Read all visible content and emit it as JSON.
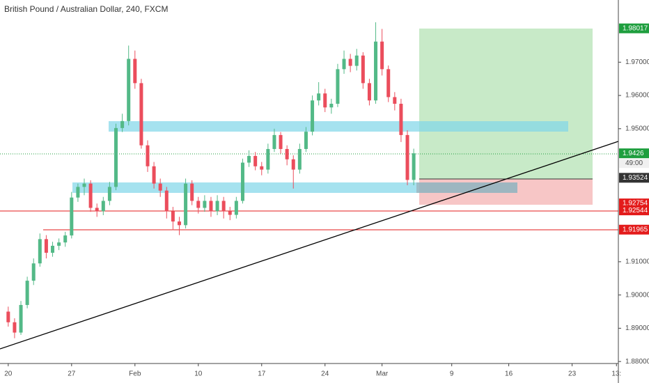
{
  "chart_data": {
    "type": "candlestick",
    "title": "British Pound / Australian Dollar, 240, FXCM",
    "up_color": "#53b987",
    "down_color": "#eb4d5c",
    "open": [
      1.895,
      1.8918,
      1.8887,
      1.897,
      1.9043,
      1.9095,
      1.9168,
      1.9127,
      1.9148,
      1.9158,
      1.9179,
      1.9293,
      1.9325,
      1.9335,
      1.9262,
      1.9252,
      1.9283,
      1.9325,
      1.9502,
      1.9523,
      1.971,
      1.9637,
      1.945,
      1.9387,
      1.9335,
      1.9314,
      1.9252,
      1.9221,
      1.921,
      1.9335,
      1.9283,
      1.9262,
      1.9283,
      1.9252,
      1.9283,
      1.9252,
      1.9241,
      1.9283,
      1.9398,
      1.9418,
      1.9387,
      1.9377,
      1.9439,
      1.9481,
      1.9439,
      1.9408,
      1.9377,
      1.9439,
      1.9491,
      1.9585,
      1.9606,
      1.9564,
      1.9575,
      1.9679,
      1.971,
      1.9689,
      1.972,
      1.9637,
      1.9585,
      1.9762,
      1.9679,
      1.9595,
      1.9575,
      1.9481,
      1.9346
    ],
    "high": [
      1.8965,
      1.893,
      1.8982,
      1.9055,
      1.911,
      1.9185,
      1.918,
      1.916,
      1.917,
      1.919,
      1.931,
      1.9335,
      1.935,
      1.9345,
      1.9275,
      1.9295,
      1.934,
      1.9515,
      1.9545,
      1.975,
      1.9735,
      1.965,
      1.9465,
      1.94,
      1.935,
      1.9325,
      1.9265,
      1.9235,
      1.935,
      1.9345,
      1.9295,
      1.93,
      1.9295,
      1.93,
      1.9295,
      1.9265,
      1.9295,
      1.941,
      1.9435,
      1.943,
      1.94,
      1.9455,
      1.95,
      1.949,
      1.945,
      1.942,
      1.9455,
      1.9505,
      1.96,
      1.964,
      1.962,
      1.959,
      1.9695,
      1.9735,
      1.9725,
      1.974,
      1.973,
      1.965,
      1.982,
      1.98,
      1.969,
      1.961,
      1.959,
      1.9495,
      1.944
    ],
    "low": [
      1.8905,
      1.887,
      1.888,
      1.896,
      1.903,
      1.9085,
      1.911,
      1.9115,
      1.9135,
      1.9145,
      1.917,
      1.928,
      1.93,
      1.925,
      1.9235,
      1.924,
      1.927,
      1.9315,
      1.949,
      1.951,
      1.962,
      1.944,
      1.937,
      1.932,
      1.9295,
      1.923,
      1.9195,
      1.918,
      1.92,
      1.927,
      1.9245,
      1.925,
      1.9235,
      1.924,
      1.923,
      1.9225,
      1.923,
      1.9275,
      1.9385,
      1.9375,
      1.936,
      1.9365,
      1.943,
      1.9425,
      1.939,
      1.932,
      1.9365,
      1.943,
      1.948,
      1.957,
      1.955,
      1.9545,
      1.9565,
      1.9665,
      1.967,
      1.9675,
      1.962,
      1.957,
      1.9575,
      1.966,
      1.958,
      1.9555,
      1.946,
      1.933,
      1.933
    ],
    "close": [
      1.8918,
      1.8887,
      1.897,
      1.9043,
      1.9095,
      1.9168,
      1.9127,
      1.9148,
      1.9158,
      1.9179,
      1.9293,
      1.9325,
      1.9335,
      1.9262,
      1.9252,
      1.9283,
      1.9325,
      1.9502,
      1.9523,
      1.971,
      1.9637,
      1.945,
      1.9387,
      1.9335,
      1.9314,
      1.9252,
      1.9221,
      1.921,
      1.9335,
      1.9283,
      1.9262,
      1.9283,
      1.9252,
      1.9283,
      1.9252,
      1.9241,
      1.9283,
      1.9398,
      1.9418,
      1.9387,
      1.9377,
      1.9439,
      1.9481,
      1.9439,
      1.9408,
      1.9377,
      1.9439,
      1.9491,
      1.9585,
      1.9606,
      1.9564,
      1.9575,
      1.9679,
      1.971,
      1.9689,
      1.972,
      1.9637,
      1.9585,
      1.9762,
      1.9679,
      1.9595,
      1.9575,
      1.9481,
      1.9346,
      1.9426
    ],
    "xlim": [
      -1.3,
      96.3
    ],
    "xticks": [
      {
        "value": 0,
        "label": "20"
      },
      {
        "value": 10,
        "label": "27"
      },
      {
        "value": 20,
        "label": "Feb"
      },
      {
        "value": 30,
        "label": "10"
      },
      {
        "value": 40,
        "label": "17"
      },
      {
        "value": 50,
        "label": "24"
      },
      {
        "value": 59,
        "label": "Mar"
      },
      {
        "value": 70,
        "label": "9"
      },
      {
        "value": 79,
        "label": "16"
      },
      {
        "value": 89,
        "label": "23"
      },
      {
        "value": 96,
        "label": "13:"
      }
    ],
    "ylim": [
      1.8794,
      1.9887
    ],
    "yticks": [
      {
        "value": 1.88,
        "label": "1.88000"
      },
      {
        "value": 1.89,
        "label": "1.89000"
      },
      {
        "value": 1.9,
        "label": "1.90000"
      },
      {
        "value": 1.91,
        "label": "1.91000"
      },
      {
        "value": 1.95,
        "label": "1.95000"
      },
      {
        "value": 1.96,
        "label": "1.96000"
      },
      {
        "value": 1.97,
        "label": "1.97000"
      }
    ],
    "price_tags": [
      {
        "value": 1.98017,
        "color": "#1e9e3e"
      },
      {
        "value": 1.9426,
        "color": "#1e9e3e"
      },
      {
        "value": 1.93524,
        "color": "#333333"
      },
      {
        "value": 1.92754,
        "color": "#e31b1b"
      },
      {
        "value": 1.92544,
        "color": "#e31b1b"
      },
      {
        "value": 1.91965,
        "color": "#e31b1b"
      }
    ],
    "countdown": "49:00"
  }
}
